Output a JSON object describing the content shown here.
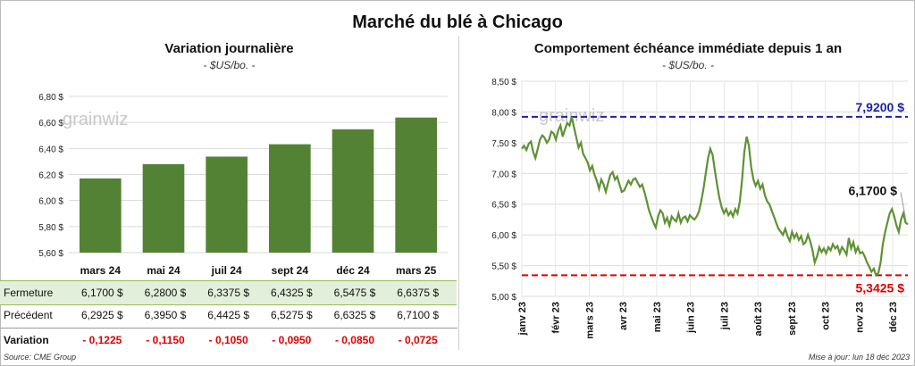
{
  "title": "Marché du blé à Chicago",
  "footer": {
    "source": "Source: CME Group",
    "updated": "Mise à jour: lun 18 déc 2023"
  },
  "colors": {
    "bar": "#548235",
    "line": "#5e9234",
    "max_line": "#1f1fa8",
    "min_line": "#e00000",
    "negative": "#e00000",
    "close_row_bg": "#e2efda"
  },
  "left": {
    "title": "Variation  journalière",
    "unit": "- $US/bo. -",
    "watermark": "grainwiz",
    "table": {
      "labels": {
        "close": "Fermeture",
        "previous": "Précédent",
        "change": "Variation"
      },
      "close": [
        "6,1700  $",
        "6,2800  $",
        "6,3375  $",
        "6,4325  $",
        "6,5475  $",
        "6,6375  $"
      ],
      "previous": [
        "6,2925  $",
        "6,3950  $",
        "6,4425  $",
        "6,5275  $",
        "6,6325  $",
        "6,7100  $"
      ],
      "change": [
        "- 0,1225",
        "- 0,1150",
        "- 0,1050",
        "- 0,0950",
        "- 0,0850",
        "- 0,0725"
      ]
    }
  },
  "right": {
    "title": "Comportement  échéance immédiate depuis 1 an",
    "unit": "- $US/bo. -",
    "watermark": "grainwiz",
    "max_label": "7,9200 $",
    "min_label": "5,3425 $",
    "last_label": "6,1700 $"
  },
  "chart_data": [
    {
      "type": "bar",
      "categories": [
        "mars 24",
        "mai 24",
        "juil 24",
        "sept 24",
        "déc 24",
        "mars 25"
      ],
      "values": [
        6.17,
        6.28,
        6.3375,
        6.4325,
        6.5475,
        6.6375
      ],
      "ylim": [
        5.6,
        6.8
      ],
      "yticks": [
        "5,60 $",
        "5,80 $",
        "6,00 $",
        "6,20 $",
        "6,40 $",
        "6,60 $",
        "6,80 $"
      ],
      "grid": true
    },
    {
      "type": "line",
      "xlabels": [
        "janv 23",
        "févr 23",
        "mars 23",
        "avr 23",
        "mai 23",
        "juin 23",
        "juil 23",
        "août 23",
        "sept 23",
        "oct 23",
        "nov 23",
        "déc 23"
      ],
      "ylim": [
        5.0,
        8.5
      ],
      "yticks": [
        "5,00 $",
        "5,50 $",
        "6,00 $",
        "6,50 $",
        "7,00 $",
        "7,50 $",
        "8,00 $",
        "8,50 $"
      ],
      "max": 7.92,
      "min": 5.3425,
      "last": 6.17,
      "series": [
        {
          "values": [
            7.4,
            7.45,
            7.38,
            7.48,
            7.52,
            7.35,
            7.25,
            7.4,
            7.55,
            7.62,
            7.58,
            7.5,
            7.55,
            7.68,
            7.65,
            7.55,
            7.7,
            7.78,
            7.6,
            7.72,
            7.82,
            7.78,
            7.92,
            7.75,
            7.58,
            7.42,
            7.5,
            7.32,
            7.25,
            7.18,
            7.05,
            7.12,
            6.98,
            6.88,
            6.75,
            6.9,
            6.82,
            6.7,
            6.85,
            6.98,
            7.02,
            6.9,
            6.95,
            6.82,
            6.7,
            6.72,
            6.8,
            6.88,
            6.82,
            6.9,
            6.92,
            6.85,
            6.78,
            6.82,
            6.7,
            6.55,
            6.4,
            6.3,
            6.2,
            6.12,
            6.3,
            6.4,
            6.35,
            6.2,
            6.28,
            6.15,
            6.3,
            6.25,
            6.22,
            6.35,
            6.2,
            6.28,
            6.3,
            6.22,
            6.32,
            6.28,
            6.25,
            6.3,
            6.38,
            6.55,
            6.75,
            7.0,
            7.25,
            7.4,
            7.3,
            7.05,
            6.82,
            6.6,
            6.45,
            6.35,
            6.42,
            6.32,
            6.38,
            6.3,
            6.42,
            6.35,
            6.55,
            6.9,
            7.35,
            7.6,
            7.45,
            7.1,
            6.9,
            6.8,
            6.88,
            6.75,
            6.82,
            6.65,
            6.55,
            6.5,
            6.4,
            6.3,
            6.2,
            6.1,
            6.05,
            6.0,
            6.1,
            5.98,
            5.9,
            6.05,
            5.95,
            6.02,
            5.92,
            5.98,
            5.85,
            5.88,
            6.0,
            5.9,
            5.75,
            5.55,
            5.65,
            5.8,
            5.72,
            5.78,
            5.7,
            5.8,
            5.75,
            5.85,
            5.78,
            5.82,
            5.7,
            5.8,
            5.75,
            5.68,
            5.95,
            5.78,
            5.88,
            5.72,
            5.8,
            5.7,
            5.72,
            5.65,
            5.55,
            5.48,
            5.4,
            5.45,
            5.3425,
            5.38,
            5.55,
            5.85,
            6.05,
            6.2,
            6.35,
            6.42,
            6.3,
            6.15,
            6.05,
            6.25,
            6.35,
            6.2,
            6.17
          ]
        }
      ],
      "grid": true
    }
  ]
}
